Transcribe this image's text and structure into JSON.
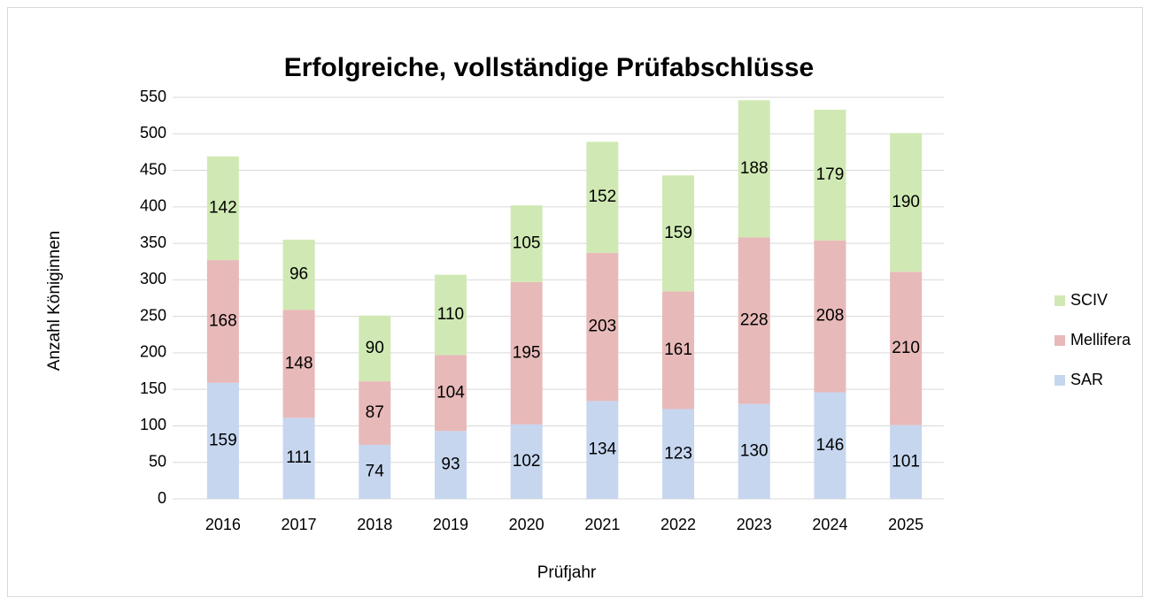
{
  "chart_data": {
    "type": "stacked_bar",
    "title": "Erfolgreiche, vollständige Prüfabschlüsse",
    "x_label": "Prüfjahr",
    "y_label": "Anzahl Königinnen",
    "categories": [
      "2016",
      "2017",
      "2018",
      "2019",
      "2020",
      "2021",
      "2022",
      "2023",
      "2024",
      "2025"
    ],
    "series": [
      {
        "name": "SAR",
        "color": "#c6d6ef",
        "values": [
          159,
          111,
          74,
          93,
          102,
          134,
          123,
          130,
          146,
          101
        ]
      },
      {
        "name": "Mellifera",
        "color": "#e8b9b9",
        "values": [
          168,
          148,
          87,
          104,
          195,
          203,
          161,
          228,
          208,
          210
        ]
      },
      {
        "name": "SCIV",
        "color": "#d0e9b4",
        "values": [
          142,
          96,
          90,
          110,
          105,
          152,
          159,
          188,
          179,
          190
        ]
      }
    ],
    "ylim": [
      0,
      550
    ],
    "yticks": [
      0,
      50,
      100,
      150,
      200,
      250,
      300,
      350,
      400,
      450,
      500,
      550
    ],
    "grid": true,
    "legend": "right"
  }
}
